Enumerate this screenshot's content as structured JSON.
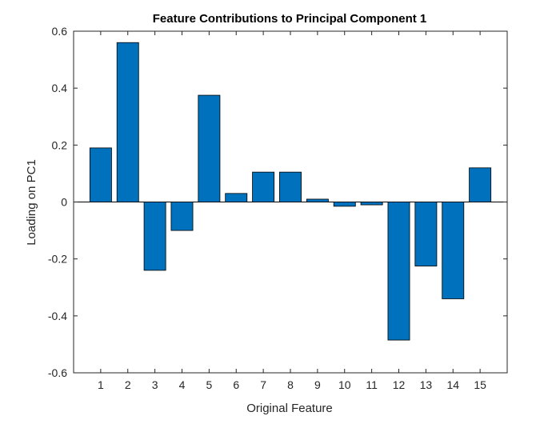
{
  "chart_data": {
    "type": "bar",
    "title": "Feature Contributions to Principal Component 1",
    "xlabel": "Original Feature",
    "ylabel": "Loading on PC1",
    "categories": [
      "1",
      "2",
      "3",
      "4",
      "5",
      "6",
      "7",
      "8",
      "9",
      "10",
      "11",
      "12",
      "13",
      "14",
      "15"
    ],
    "values": [
      0.19,
      0.56,
      -0.24,
      -0.1,
      0.375,
      0.03,
      0.105,
      0.105,
      0.01,
      -0.015,
      -0.01,
      -0.485,
      -0.225,
      -0.34,
      0.12
    ],
    "ylim": [
      -0.6,
      0.6
    ],
    "yticks": [
      "-0.6",
      "-0.4",
      "-0.2",
      "0",
      "0.2",
      "0.4",
      "0.6"
    ],
    "grid": false,
    "bar_color": "#0072BD",
    "edge_color": "#000000",
    "axis_color": "#262626"
  }
}
